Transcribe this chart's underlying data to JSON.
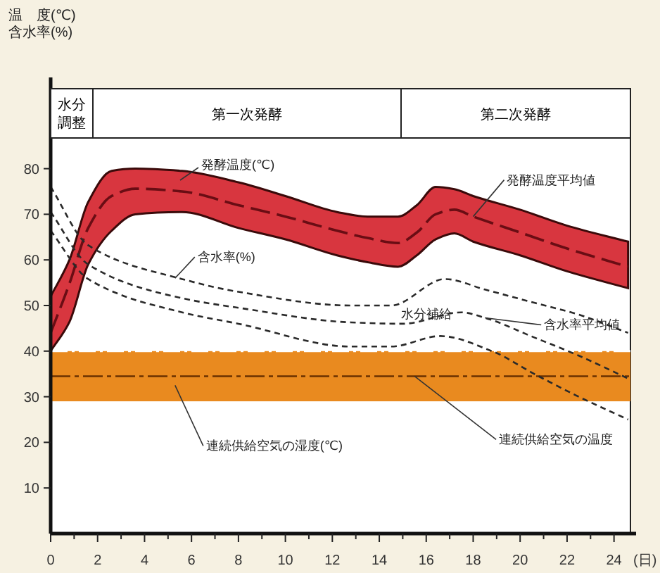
{
  "chart_data": {
    "type": "line",
    "xlabel": "(日)",
    "xlim": [
      0,
      24.7
    ],
    "xticks": [
      0,
      {
        "value": 1,
        "label": null
      },
      2,
      {
        "value": 3,
        "label": null
      },
      4,
      {
        "value": 5,
        "label": null
      },
      6,
      {
        "value": 7,
        "label": null
      },
      8,
      {
        "value": 9,
        "label": null
      },
      10,
      {
        "value": 11,
        "label": null
      },
      12,
      {
        "value": 13,
        "label": null
      },
      14,
      {
        "value": 15,
        "label": null
      },
      16,
      {
        "value": 17,
        "label": null
      },
      18,
      {
        "value": 19,
        "label": null
      },
      20,
      {
        "value": 21,
        "label": null
      },
      22,
      {
        "value": 23,
        "label": null
      },
      24
    ],
    "ylim": [
      0,
      100
    ],
    "yticks": [
      10,
      20,
      30,
      40,
      50,
      60,
      70,
      80
    ],
    "series": [
      {
        "type": "line",
        "line_style": "dashed",
        "color": "#6a0d14",
        "x": [
          0,
          0.8,
          1.6,
          2.6,
          3.6,
          5.6,
          8,
          10,
          12.2,
          13.5,
          14.8,
          15.6,
          16.4,
          17.2,
          18,
          20,
          22,
          24.6
        ],
        "values": [
          44,
          54.8,
          67,
          74,
          75.6,
          75,
          72,
          69.5,
          66.4,
          64.8,
          63.7,
          66,
          70,
          71,
          69.5,
          66,
          62.5,
          58.5
        ],
        "upper": [
          52,
          60,
          72.7,
          79.5,
          80,
          79.5,
          77,
          74,
          70.5,
          69.5,
          69.5,
          72,
          76,
          75.5,
          74,
          71,
          67.5,
          64
        ],
        "lower": [
          40,
          46.4,
          59,
          66.4,
          70,
          70.5,
          67,
          64.5,
          61,
          59.5,
          58.5,
          61,
          64.5,
          65.8,
          64,
          61,
          57.5,
          53.8
        ]
      },
      {
        "type": "line",
        "line_style": "dotted",
        "color": "#2a2a2a",
        "x": [
          0,
          1.6,
          5.6,
          8,
          12.8,
          14.5,
          16.8,
          18.5,
          20.6,
          22.5,
          24.6
        ],
        "values": [
          76,
          63.2,
          55.8,
          53,
          50,
          50,
          55.8,
          53.5,
          50.6,
          48,
          44
        ]
      },
      {
        "type": "line",
        "line_style": "dotted",
        "color": "#2a2a2a",
        "x": [
          0,
          1.6,
          5.6,
          8,
          12.8,
          15,
          17.5,
          18.5,
          20.6,
          22.5,
          24.6
        ],
        "values": [
          70.5,
          59,
          51.6,
          49.5,
          46.3,
          46,
          48.5,
          47.3,
          43,
          39,
          34
        ]
      },
      {
        "type": "line",
        "line_style": "dotted",
        "color": "#2a2a2a",
        "x": [
          0,
          1.6,
          5.6,
          8,
          12.8,
          14.5,
          16.6,
          18.8,
          20.6,
          22.5,
          24.6
        ],
        "values": [
          66.4,
          55.8,
          48.5,
          46,
          41,
          41,
          43.3,
          40,
          35,
          30,
          25
        ]
      }
    ],
    "bands": [
      {
        "axis": "y",
        "from": 29,
        "to": 40,
        "label": "連続供給空気の湿度(℃)",
        "color": "#e98a1f"
      }
    ],
    "ref_lines": [
      {
        "axis": "y",
        "value": 34.5,
        "label": "連続供給空気の温度",
        "line_style": "dashed",
        "color": "#6a3000"
      }
    ],
    "annotations": [
      "温　度(℃)\n含水率(%)",
      "水分調整",
      "第一次発酵",
      "第二次発酵",
      "発酵温度(℃)",
      {
        "text": "発酵温度平均値",
        "x": 18,
        "y": 69.5
      },
      {
        "text": "含水率(%)",
        "x": 5.3,
        "y": 56
      },
      {
        "text": "含水率平均値",
        "x": 18.5,
        "y": 47.3
      },
      {
        "text": "水分補給",
        "x": 16,
        "y": 46
      }
    ]
  }
}
